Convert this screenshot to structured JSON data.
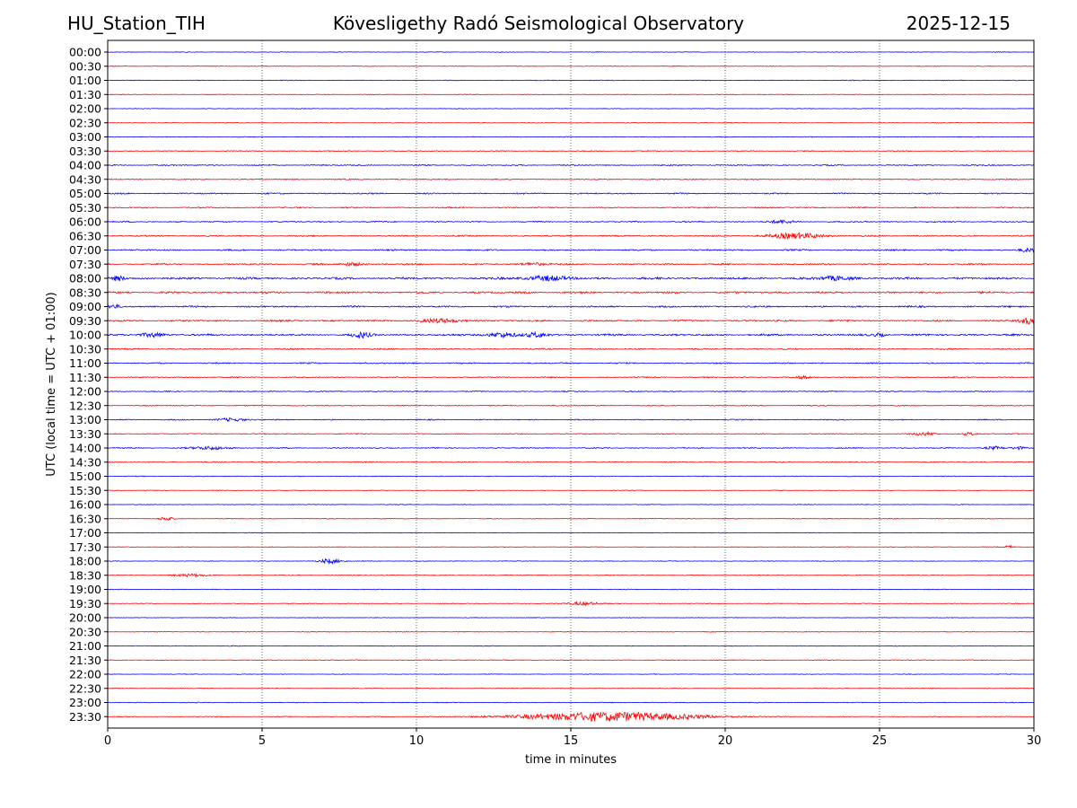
{
  "header": {
    "station": "HU_Station_TIH",
    "title": "Kövesligethy Radó Seismological Observatory",
    "date": "2025-12-15"
  },
  "colors": {
    "even_trace": "#0000ff",
    "odd_trace": "#ff0000",
    "grid": "#000000"
  },
  "chart_data": {
    "type": "line",
    "title": "Kövesligethy Radó Seismological Observatory",
    "xlabel": "time in minutes",
    "ylabel": "UTC (local time = UTC + 01:00)",
    "xlim": [
      0,
      30
    ],
    "x_ticks": [
      0,
      5,
      10,
      15,
      20,
      25,
      30
    ],
    "x_tick_labels": [
      "0",
      "5",
      "10",
      "15",
      "20",
      "25",
      "30"
    ],
    "vertical_gridlines_dotted": [
      5,
      10,
      15,
      20,
      25
    ],
    "row_labels": [
      "00:00",
      "00:30",
      "01:00",
      "01:30",
      "02:00",
      "02:30",
      "03:00",
      "03:30",
      "04:00",
      "04:30",
      "05:00",
      "05:30",
      "06:00",
      "06:30",
      "07:00",
      "07:30",
      "08:00",
      "08:30",
      "09:00",
      "09:30",
      "10:00",
      "10:30",
      "11:00",
      "11:30",
      "12:00",
      "12:30",
      "13:00",
      "13:30",
      "14:00",
      "14:30",
      "15:00",
      "15:30",
      "16:00",
      "16:30",
      "17:00",
      "17:30",
      "18:00",
      "18:30",
      "19:00",
      "19:30",
      "20:00",
      "20:30",
      "21:00",
      "21:30",
      "22:00",
      "22:30",
      "23:00",
      "23:30"
    ],
    "row_noise_levels": [
      0.3,
      0.3,
      0.35,
      0.3,
      0.3,
      0.3,
      0.35,
      0.45,
      0.55,
      0.5,
      0.65,
      0.6,
      0.6,
      0.6,
      0.7,
      0.7,
      1.0,
      0.9,
      0.8,
      0.8,
      0.9,
      0.6,
      0.6,
      0.55,
      0.5,
      0.5,
      0.5,
      0.45,
      0.5,
      0.45,
      0.35,
      0.3,
      0.3,
      0.35,
      0.3,
      0.3,
      0.3,
      0.35,
      0.3,
      0.3,
      0.25,
      0.3,
      0.35,
      0.35,
      0.3,
      0.3,
      0.35,
      0.35
    ],
    "events": [
      {
        "row": "06:00",
        "time_min": 21.8,
        "amplitude": 1.5,
        "duration_min": 0.6
      },
      {
        "row": "06:30",
        "time_min": 22.3,
        "amplitude": 3.0,
        "duration_min": 1.2
      },
      {
        "row": "07:00",
        "time_min": 29.8,
        "amplitude": 2.0,
        "duration_min": 0.4
      },
      {
        "row": "07:30",
        "time_min": 7.9,
        "amplitude": 1.8,
        "duration_min": 0.5
      },
      {
        "row": "07:30",
        "time_min": 13.8,
        "amplitude": 1.6,
        "duration_min": 0.6
      },
      {
        "row": "08:00",
        "time_min": 0.35,
        "amplitude": 3.0,
        "duration_min": 0.3
      },
      {
        "row": "08:00",
        "time_min": 14.2,
        "amplitude": 2.5,
        "duration_min": 1.0
      },
      {
        "row": "08:00",
        "time_min": 23.6,
        "amplitude": 2.2,
        "duration_min": 0.7
      },
      {
        "row": "09:00",
        "time_min": 0.2,
        "amplitude": 2.0,
        "duration_min": 0.3
      },
      {
        "row": "09:30",
        "time_min": 10.8,
        "amplitude": 1.8,
        "duration_min": 1.0
      },
      {
        "row": "09:30",
        "time_min": 29.8,
        "amplitude": 3.5,
        "duration_min": 0.4
      },
      {
        "row": "10:00",
        "time_min": 1.5,
        "amplitude": 2.0,
        "duration_min": 0.6
      },
      {
        "row": "10:00",
        "time_min": 8.2,
        "amplitude": 3.0,
        "duration_min": 0.4
      },
      {
        "row": "10:00",
        "time_min": 12.7,
        "amplitude": 2.5,
        "duration_min": 0.7
      },
      {
        "row": "10:00",
        "time_min": 13.9,
        "amplitude": 2.5,
        "duration_min": 0.5
      },
      {
        "row": "10:00",
        "time_min": 25.0,
        "amplitude": 1.6,
        "duration_min": 0.3
      },
      {
        "row": "11:30",
        "time_min": 22.5,
        "amplitude": 1.3,
        "duration_min": 0.3
      },
      {
        "row": "13:00",
        "time_min": 4.0,
        "amplitude": 1.5,
        "duration_min": 0.7
      },
      {
        "row": "13:30",
        "time_min": 26.5,
        "amplitude": 1.6,
        "duration_min": 0.5
      },
      {
        "row": "13:30",
        "time_min": 27.9,
        "amplitude": 1.6,
        "duration_min": 0.3
      },
      {
        "row": "14:00",
        "time_min": 3.3,
        "amplitude": 1.8,
        "duration_min": 0.8
      },
      {
        "row": "14:00",
        "time_min": 28.7,
        "amplitude": 1.5,
        "duration_min": 0.4
      },
      {
        "row": "14:00",
        "time_min": 29.5,
        "amplitude": 1.6,
        "duration_min": 0.3
      },
      {
        "row": "16:30",
        "time_min": 1.9,
        "amplitude": 2.0,
        "duration_min": 0.3
      },
      {
        "row": "17:30",
        "time_min": 29.2,
        "amplitude": 1.6,
        "duration_min": 0.2
      },
      {
        "row": "18:00",
        "time_min": 7.2,
        "amplitude": 2.5,
        "duration_min": 0.5
      },
      {
        "row": "18:30",
        "time_min": 2.7,
        "amplitude": 1.3,
        "duration_min": 0.9
      },
      {
        "row": "19:30",
        "time_min": 15.4,
        "amplitude": 2.0,
        "duration_min": 0.7
      },
      {
        "row": "23:30",
        "time_min": 16.3,
        "amplitude": 5.0,
        "duration_min": 4.0
      }
    ]
  }
}
